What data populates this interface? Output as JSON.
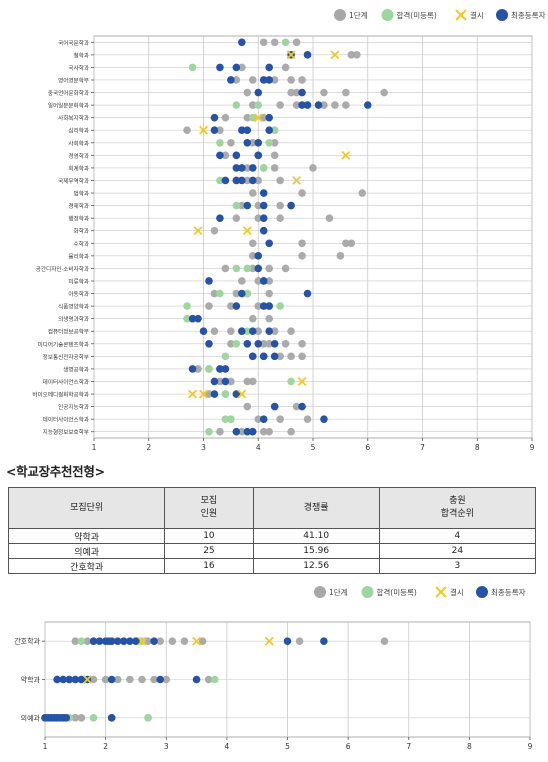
{
  "colors": {
    "stage1": "#a7a7a7",
    "passed": "#9fd6a0",
    "absent": "#f2c927",
    "final": "#2653a6",
    "grid": "#c8c8c8",
    "axis": "#999999"
  },
  "legend": [
    {
      "key": "stage1",
      "label": "1단계",
      "marker": "circle"
    },
    {
      "key": "passed",
      "label": "합격(미등록)",
      "marker": "circle"
    },
    {
      "key": "absent",
      "label": "결시",
      "marker": "x"
    },
    {
      "key": "final",
      "label": "최종등록자",
      "marker": "circle"
    }
  ],
  "section_title": "<학교장추천전형>",
  "table": {
    "headers": [
      "모집단위",
      "모집\n인원",
      "경쟁률",
      "충원\n합격순위"
    ],
    "rows": [
      [
        "약학과",
        "10",
        "41.10",
        "4"
      ],
      [
        "의예과",
        "25",
        "15.96",
        "24"
      ],
      [
        "간호학과",
        "16",
        "12.56",
        "3"
      ]
    ]
  },
  "chart_data": [
    {
      "type": "scatter",
      "xlim": [
        1,
        9
      ],
      "x_ticks": [
        "1",
        "2",
        "3",
        "4",
        "5",
        "6",
        "7",
        "8",
        "9"
      ],
      "grid": true,
      "legend_position": "top-right",
      "categories": [
        "국어국문학과",
        "철학과",
        "국사학과",
        "영어영문학부",
        "중국언어문화학과",
        "일어일문문화학과",
        "사회복지학과",
        "심리학과",
        "사회학과",
        "경영학과",
        "회계학과",
        "국제무역학과",
        "법학과",
        "경제학과",
        "행정학과",
        "화학과",
        "수학과",
        "물리학과",
        "공간디자인·소비자학과",
        "미류학과",
        "아동학과",
        "식품영양학과",
        "의생명과학과",
        "컴퓨터정보공학부",
        "미디어기술콘텐츠학과",
        "정보통신전자공학부",
        "생명공학과",
        "데이터사이언스학과",
        "바이오메디컬화학공학과",
        "인공지능학과",
        "데이터사이언스학과",
        "지능형정보보호학부"
      ],
      "stage1": [
        [
          4.1,
          4.3,
          4.7
        ],
        [
          5.7,
          5.8
        ],
        [
          3.7,
          4.5
        ],
        [
          3.6,
          3.9,
          4.3,
          4.6,
          4.8
        ],
        [
          3.8,
          4.6,
          4.7,
          5.2,
          5.6,
          6.3
        ],
        [
          3.9,
          4.4,
          4.7,
          5.2,
          5.4,
          5.6
        ],
        [
          3.4,
          3.8,
          4.1
        ],
        [
          2.7,
          3.3,
          4.3
        ],
        [
          3.5,
          3.9,
          4.3
        ],
        [
          3.4,
          4.0,
          4.3
        ],
        [
          3.8,
          4.1,
          4.3,
          5.0
        ],
        [
          3.6,
          3.8,
          4.0,
          4.4
        ],
        [
          3.9,
          4.8,
          5.9
        ],
        [
          3.7,
          4.0,
          4.4,
          4.6
        ],
        [
          3.6,
          4.0,
          4.4,
          5.3
        ],
        [
          3.2,
          4.1
        ],
        [
          3.9,
          4.8,
          5.6,
          5.7
        ],
        [
          3.9,
          4.8,
          5.5
        ],
        [
          3.4,
          3.9,
          4.2,
          4.5
        ],
        [
          3.7,
          4.0,
          4.1,
          4.2
        ],
        [
          3.2,
          3.6,
          3.8,
          4.2
        ],
        [
          3.1,
          3.5,
          4.0,
          4.2
        ],
        [
          2.7,
          2.8,
          3.9,
          4.2
        ],
        [
          3.2,
          3.5,
          3.7,
          4.0,
          4.3,
          4.6
        ],
        [
          3.5,
          3.8,
          4.1,
          4.2,
          4.5,
          4.8
        ],
        [
          3.9,
          4.1,
          4.4,
          4.6,
          4.8
        ],
        [
          2.9,
          3.1,
          3.3
        ],
        [
          3.3,
          3.5,
          3.8,
          3.9
        ],
        [
          3.1,
          3.4,
          3.6
        ],
        [
          3.8,
          4.3,
          4.7
        ],
        [
          3.5,
          4.0,
          4.4,
          4.9
        ],
        [
          3.3,
          3.7,
          4.1,
          4.2,
          4.6
        ]
      ],
      "passed": [
        [
          4.5
        ],
        [],
        [
          2.8
        ],
        [],
        [],
        [
          3.6,
          4.0
        ],
        [
          3.9
        ],
        [
          4.3
        ],
        [
          3.3,
          4.2
        ],
        [],
        [
          4.1
        ],
        [
          3.3
        ],
        [],
        [
          3.6
        ],
        [],
        [],
        [],
        [],
        [
          3.6,
          3.8
        ],
        [],
        [
          3.3,
          3.8
        ],
        [
          2.7,
          4.4
        ],
        [
          2.7
        ],
        [
          3.8
        ],
        [
          3.6
        ],
        [
          3.4
        ],
        [
          3.1
        ],
        [
          4.6
        ],
        [
          3.4
        ],
        [],
        [
          3.4,
          3.5
        ],
        [
          3.1
        ]
      ],
      "absent": [
        [],
        [
          4.6,
          5.4
        ],
        [],
        [],
        [],
        [],
        [
          4.0
        ],
        [
          3.0
        ],
        [],
        [
          5.6
        ],
        [],
        [
          4.7
        ],
        [],
        [],
        [],
        [
          2.9,
          3.8
        ],
        [],
        [],
        [],
        [],
        [],
        [],
        [],
        [],
        [],
        [],
        [],
        [
          4.8
        ],
        [
          2.8,
          3.0,
          3.7
        ],
        [],
        [],
        []
      ],
      "final": [
        [
          3.7
        ],
        [
          4.6,
          4.9
        ],
        [
          3.3,
          3.6,
          4.2
        ],
        [
          3.5,
          4.1,
          4.2
        ],
        [
          4.0,
          4.8
        ],
        [
          4.8,
          4.9,
          5.1,
          6.0
        ],
        [
          3.2,
          4.2
        ],
        [
          3.2,
          3.7,
          3.8,
          4.2
        ],
        [
          3.8,
          4.0
        ],
        [
          3.3,
          3.6,
          4.0
        ],
        [
          3.6,
          3.7,
          3.9
        ],
        [
          3.4,
          3.6,
          3.7,
          3.9
        ],
        [
          4.1
        ],
        [
          3.8,
          4.1,
          4.6
        ],
        [
          3.3,
          4.1
        ],
        [
          4.1
        ],
        [
          4.2
        ],
        [
          4.0
        ],
        [
          4.0
        ],
        [
          3.1,
          4.1
        ],
        [
          3.7,
          4.9
        ],
        [
          3.6,
          4.1,
          4.2
        ],
        [
          2.8,
          2.9
        ],
        [
          3.0,
          3.7,
          3.9,
          4.2
        ],
        [
          3.1,
          3.8,
          4.0,
          4.3
        ],
        [
          3.9,
          4.1,
          4.3
        ],
        [
          2.8,
          3.3,
          3.4
        ],
        [
          3.2,
          3.4
        ],
        [
          3.2,
          3.6
        ],
        [
          4.3,
          4.8
        ],
        [
          4.1,
          5.2
        ],
        [
          3.6,
          3.8,
          3.9
        ]
      ]
    },
    {
      "type": "scatter",
      "xlim": [
        1,
        9
      ],
      "x_ticks": [
        "1",
        "2",
        "3",
        "4",
        "5",
        "6",
        "7",
        "8",
        "9"
      ],
      "grid": true,
      "legend_position": "top-right",
      "categories": [
        "간호학과",
        "약학과",
        "의예과"
      ],
      "stage1": [
        [
          1.5,
          1.7,
          1.9,
          2.1,
          2.3,
          2.5,
          2.7,
          2.9,
          3.1,
          3.3,
          3.6,
          5.2,
          6.6
        ],
        [
          1.2,
          1.4,
          1.6,
          1.8,
          2.0,
          2.2,
          2.4,
          2.6,
          2.8,
          3.0,
          3.5,
          3.7
        ],
        [
          1.0,
          1.1,
          1.2,
          1.3,
          1.4,
          1.5,
          1.6,
          2.1,
          2.7
        ]
      ],
      "passed": [
        [
          1.6,
          1.8,
          2.3,
          2.6
        ],
        [
          1.3,
          1.5,
          1.7,
          3.8
        ],
        [
          1.4,
          1.8,
          2.7
        ]
      ],
      "absent": [
        [
          2.6,
          3.5,
          4.7
        ],
        [
          1.7
        ],
        []
      ],
      "final": [
        [
          1.8,
          1.9,
          2.0,
          2.05,
          2.1,
          2.2,
          2.3,
          2.4,
          2.5,
          2.8,
          5.0,
          5.6
        ],
        [
          1.2,
          1.3,
          1.4,
          1.5,
          1.6,
          1.7,
          2.1,
          2.9,
          3.5
        ],
        [
          1.0,
          1.05,
          1.1,
          1.15,
          1.2,
          1.25,
          1.3,
          1.35,
          2.1
        ]
      ]
    }
  ]
}
